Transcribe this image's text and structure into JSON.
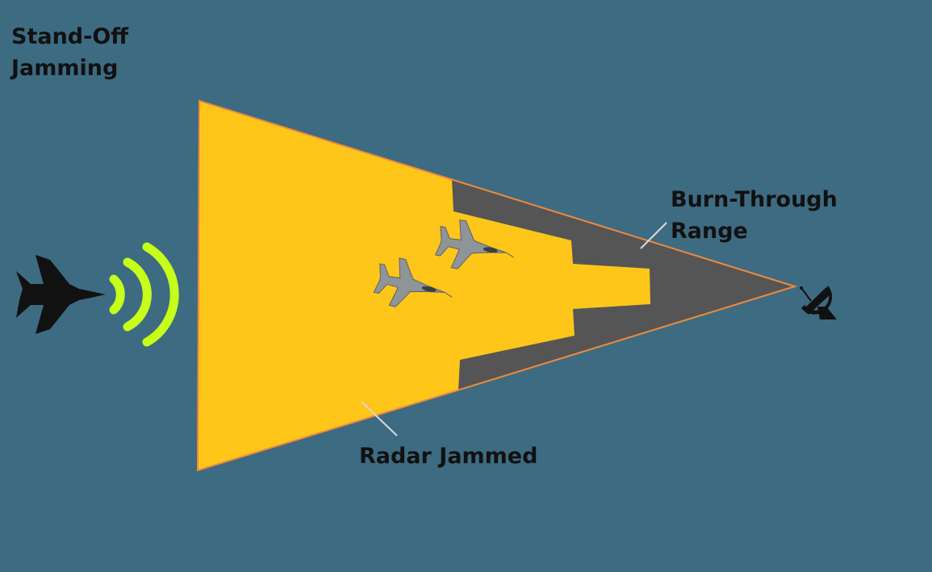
{
  "diagram": {
    "title_line1": "Stand-Off",
    "title_line2": "Jamming",
    "burn_through_line1": "Burn-Through",
    "burn_through_line2": "Range",
    "radar_jammed_label": "Radar Jammed"
  },
  "icons": {
    "jammer": "jammer-aircraft-icon",
    "signal": "jamming-signal-icon",
    "fighters": "fighter-jet-icon",
    "radar": "radar-dish-icon"
  },
  "colors": {
    "background": "#3d6b82",
    "jammed_zone": "#ffc61a",
    "burn_through_zone": "#555555",
    "beam_outline": "#f08a3c",
    "signal_waves": "#c6ff1a",
    "silhouette": "#111111",
    "fighter_jets": "#8f9499"
  }
}
